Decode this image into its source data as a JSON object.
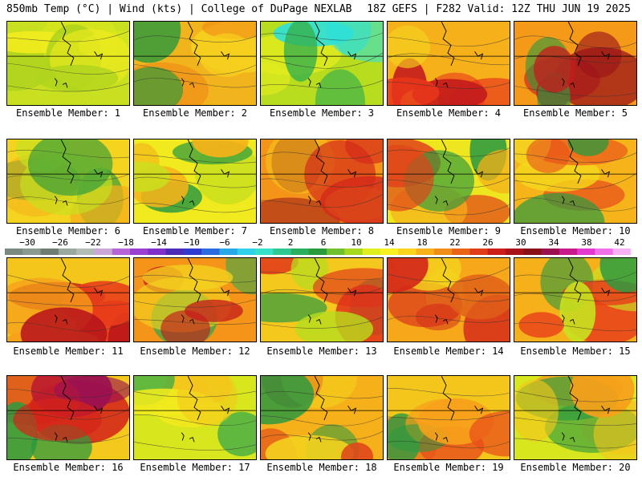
{
  "header": {
    "left": "850mb Temp (°C) | Wind (kts) | College of DuPage NEXLAB",
    "right": "18Z GEFS | F282 Valid: 12Z THU JUN 19 2025"
  },
  "colorbar": {
    "labels": [
      "−30",
      "−26",
      "−22",
      "−18",
      "−14",
      "−10",
      "−6",
      "−2",
      "2",
      "6",
      "10",
      "14",
      "18",
      "22",
      "26",
      "30",
      "34",
      "38",
      "42"
    ],
    "colors": [
      "#7a8a80",
      "#8a9a90",
      "#6f7c74",
      "#9aa8a0",
      "#b0bcb4",
      "#c9a7d8",
      "#b565d6",
      "#9a3fcf",
      "#7f30c8",
      "#4b2bb8",
      "#2f3ccf",
      "#2a6be0",
      "#29a8e8",
      "#2fd0e8",
      "#37e0c8",
      "#2ec890",
      "#28b060",
      "#2a9a3e",
      "#6fbf2e",
      "#a6d81e",
      "#e0ee1e",
      "#f8f020",
      "#fad41e",
      "#f7b21a",
      "#f08c18",
      "#ea6418",
      "#e03c1a",
      "#cc1c1c",
      "#a8141a",
      "#8a1018",
      "#9a1050",
      "#c81a8a",
      "#e23ad0",
      "#f070e8",
      "#f7b0f4"
    ]
  },
  "panels": [
    {
      "label": "Ensemble Member: 1",
      "palette": [
        "#c8e020",
        "#b0d41e",
        "#dce81e",
        "#f2ec1e"
      ]
    },
    {
      "label": "Ensemble Member: 2",
      "palette": [
        "#f2b41c",
        "#f6d01e",
        "#2e9a3c",
        "#f08c18"
      ]
    },
    {
      "label": "Ensemble Member: 3",
      "palette": [
        "#b8dc1e",
        "#2ee0d8",
        "#36b04a",
        "#e4ec1e"
      ]
    },
    {
      "label": "Ensemble Member: 4",
      "palette": [
        "#f6b01a",
        "#e8361a",
        "#c41c1c",
        "#f4d21e"
      ]
    },
    {
      "label": "Ensemble Member: 5",
      "palette": [
        "#f49a18",
        "#c41c1c",
        "#9a121a",
        "#2c9a40"
      ]
    },
    {
      "label": "Ensemble Member: 6",
      "palette": [
        "#f4d41e",
        "#2e9a3c",
        "#f6b01a",
        "#c8e01e"
      ]
    },
    {
      "label": "Ensemble Member: 7",
      "palette": [
        "#f0ea1e",
        "#f6b41a",
        "#c8e01e",
        "#2c9a40"
      ]
    },
    {
      "label": "Ensemble Member: 8",
      "palette": [
        "#f49418",
        "#d42a1a",
        "#9a141a",
        "#f4c81c"
      ]
    },
    {
      "label": "Ensemble Member: 9",
      "palette": [
        "#eee61e",
        "#e0441a",
        "#2c9a40",
        "#f6b01a"
      ]
    },
    {
      "label": "Ensemble Member: 10",
      "palette": [
        "#f6b41a",
        "#e8501a",
        "#2c9a40",
        "#f4d81e"
      ]
    },
    {
      "label": "Ensemble Member: 11",
      "palette": [
        "#f4c61c",
        "#b8141a",
        "#e83c1a",
        "#f6a01a"
      ]
    },
    {
      "label": "Ensemble Member: 12",
      "palette": [
        "#f49418",
        "#c41c1c",
        "#36a84a",
        "#f4d21e"
      ]
    },
    {
      "label": "Ensemble Member: 13",
      "palette": [
        "#f4c81c",
        "#e0301a",
        "#2c9a40",
        "#b8dc1e"
      ]
    },
    {
      "label": "Ensemble Member: 14",
      "palette": [
        "#f6a81a",
        "#d42a1a",
        "#f4d21e",
        "#e06018"
      ]
    },
    {
      "label": "Ensemble Member: 15",
      "palette": [
        "#f6b01a",
        "#e8401a",
        "#c8e01e",
        "#2c9a40"
      ]
    },
    {
      "label": "Ensemble Member: 16",
      "palette": [
        "#f4c81c",
        "#d4241a",
        "#9a1050",
        "#2c9a40"
      ]
    },
    {
      "label": "Ensemble Member: 17",
      "palette": [
        "#d8e61e",
        "#f4c61c",
        "#36a84a",
        "#f0ea1e"
      ]
    },
    {
      "label": "Ensemble Member: 18",
      "palette": [
        "#f6b01a",
        "#e0441a",
        "#2c9a40",
        "#f4d21e"
      ]
    },
    {
      "label": "Ensemble Member: 19",
      "palette": [
        "#f4c61c",
        "#e8501a",
        "#2c9a40",
        "#f6a01a"
      ]
    },
    {
      "label": "Ensemble Member: 20",
      "palette": [
        "#d8e61e",
        "#f4c61c",
        "#2c9a40",
        "#f6a01a"
      ]
    }
  ]
}
